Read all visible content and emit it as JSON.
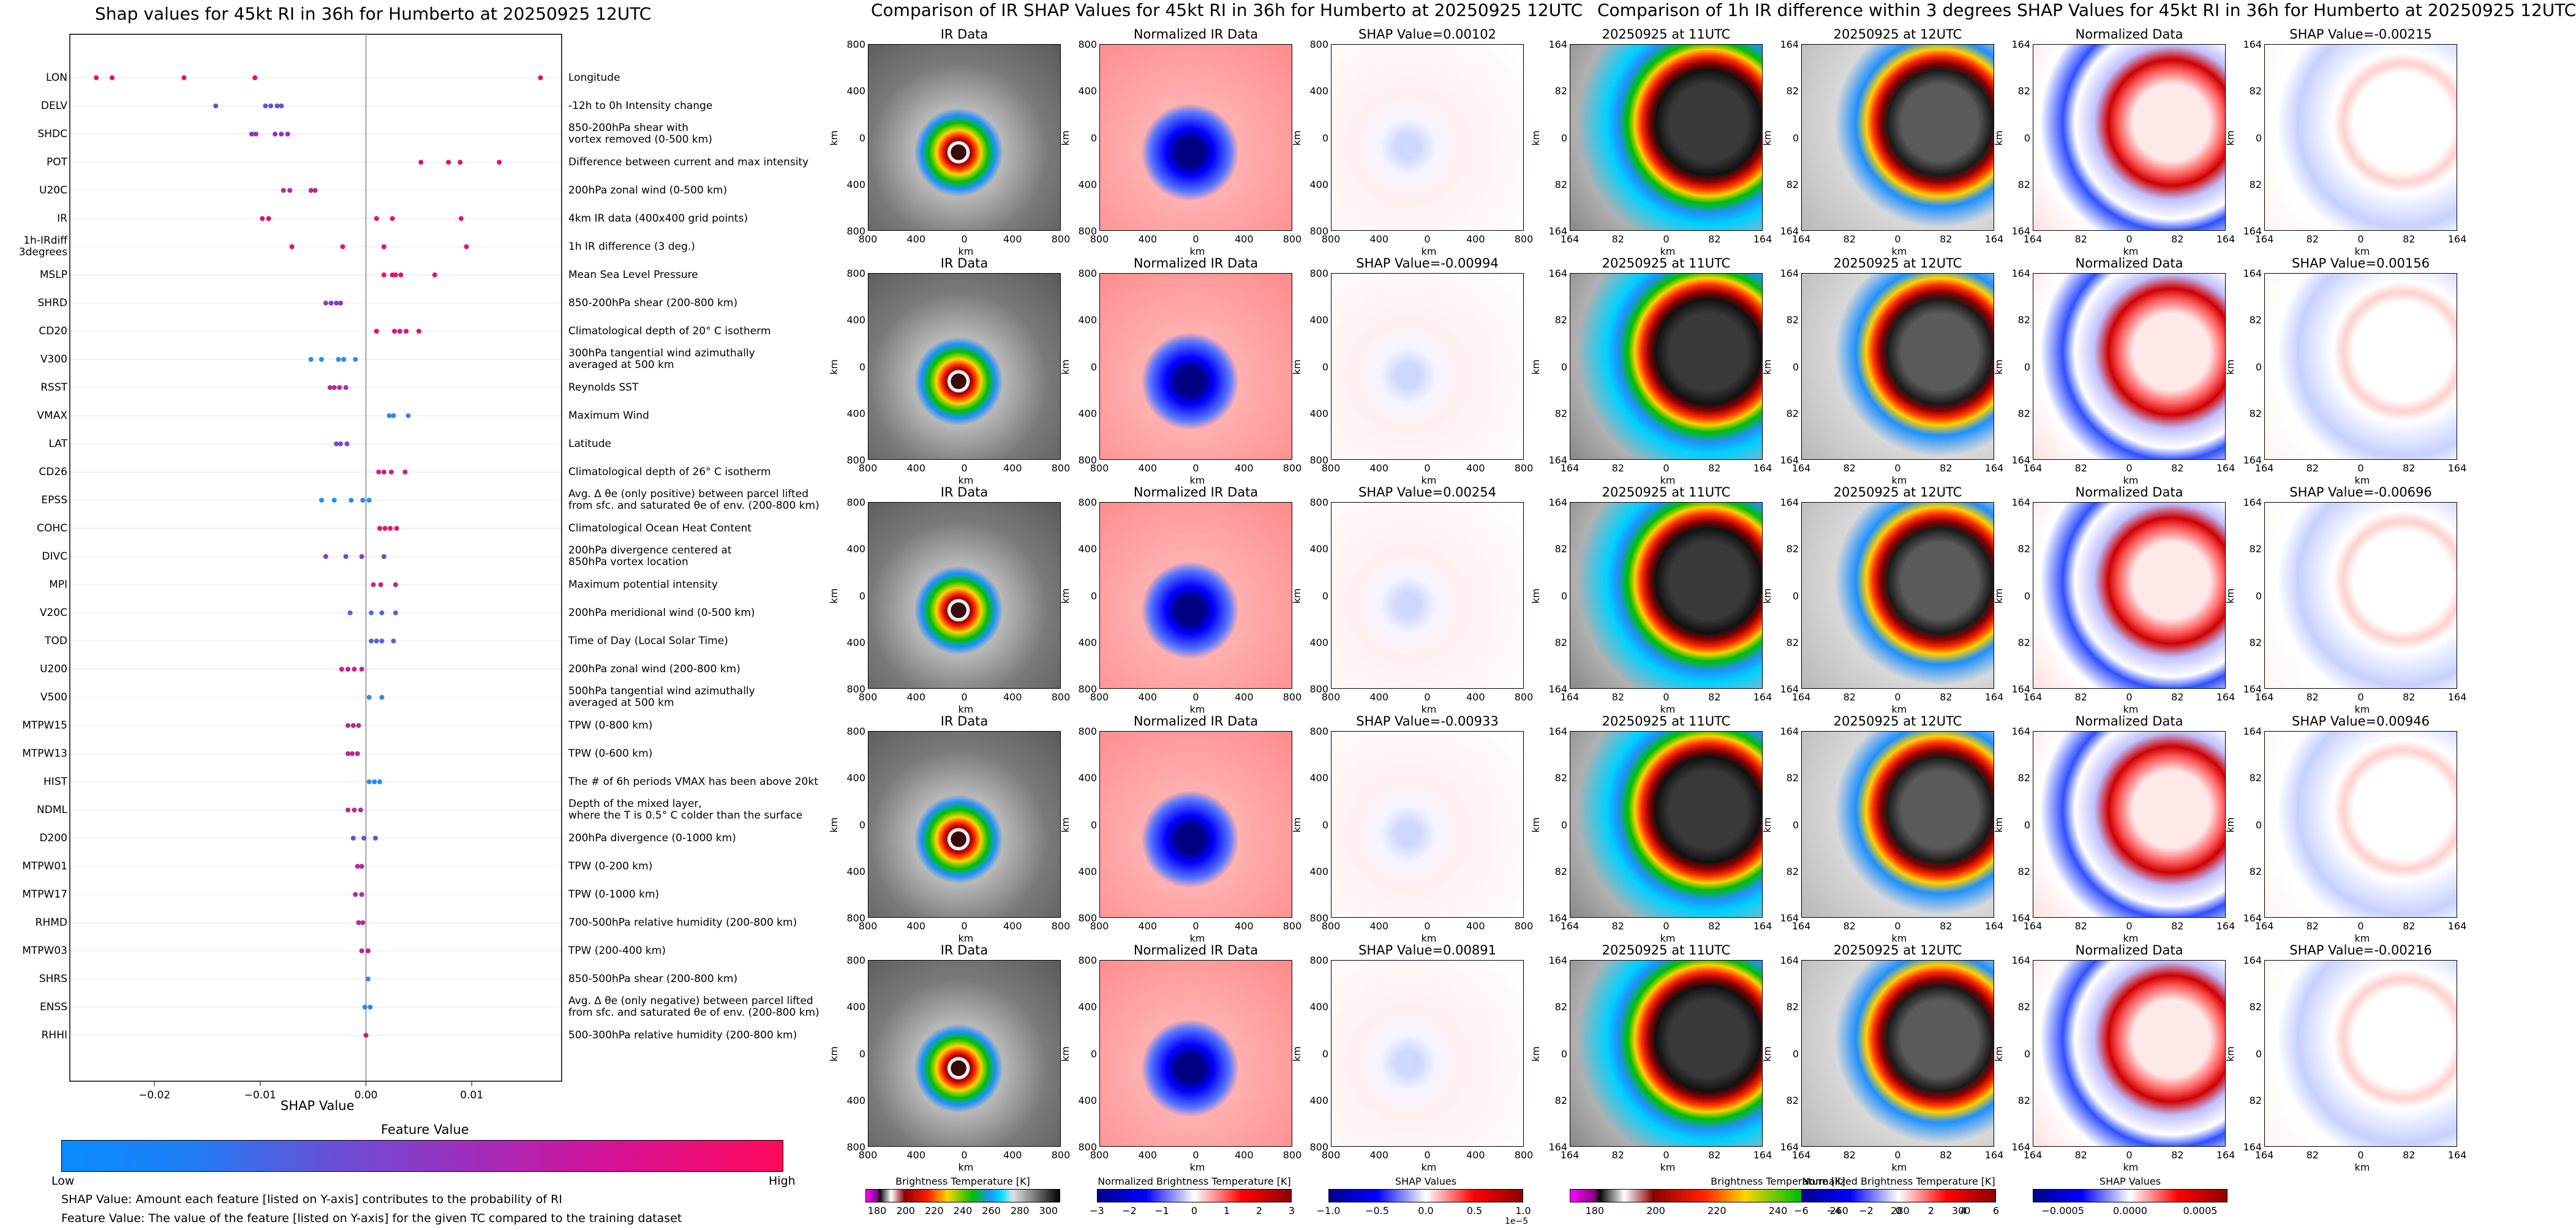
{
  "titles": {
    "beeswarm": "Shap values for 45kt RI in 36h for Humberto at 20250925 12UTC",
    "ir_section": "Comparison of IR SHAP Values for 45kt RI in 36h for Humberto at 20250925 12UTC",
    "diff_section": "Comparison of 1h IR difference within 3 degrees SHAP Values for 45kt RI in 36h for Humberto at 20250925 12UTC"
  },
  "beeswarm": {
    "xlabel": "SHAP Value",
    "xticks": [
      "−0.02",
      "−0.01",
      "0.00",
      "0.01"
    ],
    "colorbar_title": "Feature Value",
    "colorbar_low": "Low",
    "colorbar_high": "High",
    "footnote1": "SHAP Value: Amount each feature [listed on Y-axis] contributes to the probability of RI",
    "footnote2": "Feature Value: The value of the feature [listed on Y-axis] for the given TC compared to the training dataset"
  },
  "chart_data": {
    "type": "scatter",
    "xlabel": "SHAP Value",
    "xlim": [
      -0.028,
      0.0185
    ],
    "features": [
      {
        "name": "LON",
        "desc": "Longitude",
        "values": [
          -0.0255,
          -0.024,
          -0.0172,
          -0.0105,
          0.0165
        ],
        "color": "#e8106e"
      },
      {
        "name": "DELV",
        "desc": "-12h to 0h Intensity change",
        "values": [
          -0.0142,
          -0.0095,
          -0.009,
          -0.0084,
          -0.008
        ],
        "color": "#6a4fd6"
      },
      {
        "name": "SHDC",
        "desc": "850-200hPa shear with|vortex removed (0-500 km)",
        "values": [
          -0.0108,
          -0.0104,
          -0.0086,
          -0.008,
          -0.0074
        ],
        "color": "#9a2fb8"
      },
      {
        "name": "POT",
        "desc": "Difference between current and max intensity",
        "values": [
          0.0052,
          0.0078,
          0.0089,
          0.0126
        ],
        "color": "#e8106e"
      },
      {
        "name": "U20C",
        "desc": "200hPa zonal wind (0-500 km)",
        "values": [
          -0.0078,
          -0.0072,
          -0.0052,
          -0.0048
        ],
        "color": "#b52a9a"
      },
      {
        "name": "IR",
        "desc": "4km IR data (400x400 grid points)",
        "values": [
          -0.0098,
          -0.0092,
          0.001,
          0.0025,
          0.009
        ],
        "color": "#e8106e"
      },
      {
        "name": "1h-IRdiff|3degrees",
        "desc": "1h IR difference (3 deg.)",
        "values": [
          -0.007,
          -0.0022,
          0.0017,
          0.0095
        ],
        "color": "#e8106e"
      },
      {
        "name": "MSLP",
        "desc": "Mean Sea Level Pressure",
        "values": [
          0.0017,
          0.0025,
          0.0028,
          0.0033,
          0.0065
        ],
        "color": "#e8106e"
      },
      {
        "name": "SHRD",
        "desc": "850-200hPa shear (200-800 km)",
        "values": [
          -0.0038,
          -0.0033,
          -0.0028,
          -0.0024
        ],
        "color": "#8a3bc7"
      },
      {
        "name": "CD20",
        "desc": "Climatological depth of 20° C isotherm",
        "values": [
          0.001,
          0.0027,
          0.0032,
          0.0038,
          0.005
        ],
        "color": "#e8106e"
      },
      {
        "name": "V300",
        "desc": "300hPa tangential wind azimuthally|averaged at 500 km",
        "values": [
          -0.0052,
          -0.0042,
          -0.0026,
          -0.0021,
          -0.001
        ],
        "color": "#2a8cf0"
      },
      {
        "name": "RSST",
        "desc": "Reynolds SST",
        "values": [
          -0.0034,
          -0.003,
          -0.0025,
          -0.0019
        ],
        "color": "#b52a9a"
      },
      {
        "name": "VMAX",
        "desc": "Maximum Wind",
        "values": [
          0.0022,
          0.0026,
          0.004
        ],
        "color": "#2a8cf0"
      },
      {
        "name": "LAT",
        "desc": "Latitude",
        "values": [
          -0.0028,
          -0.0024,
          -0.0018
        ],
        "color": "#6a4fd6"
      },
      {
        "name": "CD26",
        "desc": "Climatological depth of 26° C isotherm",
        "values": [
          0.0012,
          0.0017,
          0.0024,
          0.0037
        ],
        "color": "#d01a8a"
      },
      {
        "name": "EPSS",
        "desc": "Avg. Δ θe (only positive) between parcel lifted|from sfc. and saturated θe of env. (200-800 km)",
        "values": [
          -0.0042,
          -0.003,
          -0.0014,
          -0.0003,
          0.0003
        ],
        "color": "#2a8cf0"
      },
      {
        "name": "COHC",
        "desc": "Climatological Ocean Heat Content",
        "values": [
          0.0013,
          0.0018,
          0.0023,
          0.0029
        ],
        "color": "#e8106e"
      },
      {
        "name": "DIVC",
        "desc": "200hPa divergence centered at|850hPa vortex location",
        "values": [
          -0.0038,
          -0.0019,
          -0.0004,
          0.0017
        ],
        "color": "#7a44d0"
      },
      {
        "name": "MPI",
        "desc": "Maximum potential intensity",
        "values": [
          0.0007,
          0.0014,
          0.0028
        ],
        "color": "#c8208f"
      },
      {
        "name": "V20C",
        "desc": "200hPa meridional wind (0-500 km)",
        "values": [
          -0.0015,
          0.0005,
          0.0015,
          0.0028
        ],
        "color": "#4a6ae0"
      },
      {
        "name": "TOD",
        "desc": "Time of Day (Local Solar Time)",
        "values": [
          0.0005,
          0.001,
          0.0015,
          0.0026
        ],
        "color": "#5b5fdc"
      },
      {
        "name": "U200",
        "desc": "200hPa zonal wind (200-800 km)",
        "values": [
          -0.0023,
          -0.0017,
          -0.0011,
          -0.0004
        ],
        "color": "#c8208f"
      },
      {
        "name": "V500",
        "desc": "500hPa tangential wind azimuthally|averaged at 500 km",
        "values": [
          0.0003,
          0.0015
        ],
        "color": "#2a8cf0"
      },
      {
        "name": "MTPW15",
        "desc": "TPW (0-800 km)",
        "values": [
          -0.0017,
          -0.0012,
          -0.0007
        ],
        "color": "#b52a9a"
      },
      {
        "name": "MTPW13",
        "desc": "TPW (0-600 km)",
        "values": [
          -0.0017,
          -0.0013,
          -0.0008
        ],
        "color": "#b52a9a"
      },
      {
        "name": "HIST",
        "desc": "The # of 6h periods VMAX has been above 20kt",
        "values": [
          0.0003,
          0.0008,
          0.0013
        ],
        "color": "#2a8cf0"
      },
      {
        "name": "NDML",
        "desc": "Depth of the mixed layer,|where the T is 0.5° C colder than the surface",
        "values": [
          -0.0017,
          -0.0011,
          -0.0005
        ],
        "color": "#b52a9a"
      },
      {
        "name": "D200",
        "desc": "200hPa divergence (0-1000 km)",
        "values": [
          -0.0012,
          -0.0002,
          0.0009
        ],
        "color": "#6a4fd6"
      },
      {
        "name": "MTPW01",
        "desc": "TPW (0-200 km)",
        "values": [
          -0.0008,
          -0.0004
        ],
        "color": "#b52a9a"
      },
      {
        "name": "MTPW17",
        "desc": "TPW (0-1000 km)",
        "values": [
          -0.001,
          -0.0004
        ],
        "color": "#b52a9a"
      },
      {
        "name": "RHMD",
        "desc": "700-500hPa relative humidity (200-800 km)",
        "values": [
          -0.0007,
          -0.0003
        ],
        "color": "#b52a9a"
      },
      {
        "name": "MTPW03",
        "desc": "TPW (200-400 km)",
        "values": [
          -0.0004,
          0.0002
        ],
        "color": "#d01a8a"
      },
      {
        "name": "SHRS",
        "desc": "850-500hPa shear (200-800 km)",
        "values": [
          0.0002
        ],
        "color": "#2a8cf0"
      },
      {
        "name": "ENSS",
        "desc": "Avg. Δ θe (only negative) between parcel lifted|from sfc. and saturated θe of env. (200-800 km)",
        "values": [
          -0.0001,
          0.0004
        ],
        "color": "#2a8cf0"
      },
      {
        "name": "RHHI",
        "desc": "500-300hPa relative humidity (200-800 km)",
        "values": [
          0.0
        ],
        "color": "#d01a8a"
      }
    ]
  },
  "panels": {
    "ir_titles": [
      "IR Data",
      "Normalized IR Data"
    ],
    "shap_ir_titles": [
      "SHAP Value=0.00102",
      "SHAP Value=-0.00994",
      "SHAP Value=0.00254",
      "SHAP Value=-0.00933",
      "SHAP Value=0.00891"
    ],
    "diff_titles": [
      "20250925 at 11UTC",
      "20250925 at 12UTC",
      "Normalized Data"
    ],
    "shap_diff_titles": [
      "SHAP Value=-0.00215",
      "SHAP Value=0.00156",
      "SHAP Value=-0.00696",
      "SHAP Value=0.00946",
      "SHAP Value=-0.00216"
    ],
    "km_label": "km",
    "ir_ticks": [
      "800",
      "400",
      "0",
      "400",
      "800"
    ],
    "diff_ticks": [
      "164",
      "82",
      "0",
      "82",
      "164"
    ]
  },
  "colorbars": [
    {
      "title": "Brightness Temperature [K]",
      "ticks": [
        "180",
        "200",
        "220",
        "240",
        "260",
        "280",
        "300"
      ],
      "offset": ""
    },
    {
      "title": "Normalized Brightness Temperature [K]",
      "ticks": [
        "−3",
        "−2",
        "−1",
        "0",
        "1",
        "2",
        "3"
      ],
      "offset": ""
    },
    {
      "title": "SHAP Values",
      "ticks": [
        "−1.0",
        "−0.5",
        "0.0",
        "0.5",
        "1.0"
      ],
      "offset": "1e−5"
    },
    {
      "title": "Brightness Temperature [K]",
      "ticks": [
        "180",
        "200",
        "220",
        "240",
        "260",
        "280",
        "300"
      ],
      "offset": ""
    },
    {
      "title": "Normalized Brightness Temperature [K]",
      "ticks": [
        "−6",
        "−4",
        "−2",
        "0",
        "2",
        "4",
        "6"
      ],
      "offset": ""
    },
    {
      "title": "SHAP Values",
      "ticks": [
        "−0.0005",
        "0.0000",
        "0.0005"
      ],
      "offset": ""
    }
  ],
  "colors": {
    "cold": "#0a8cff",
    "hot": "#ff0a5a"
  }
}
